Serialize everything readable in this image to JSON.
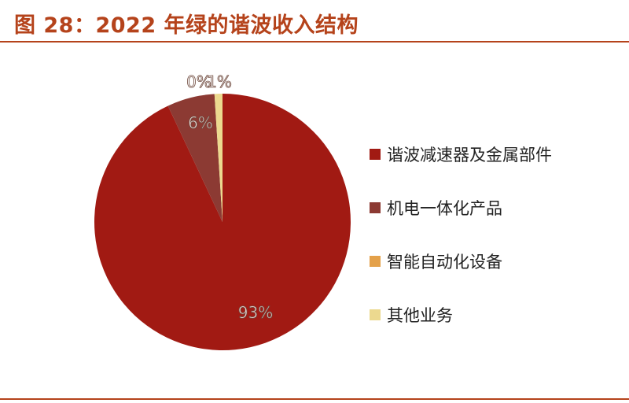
{
  "header": {
    "title": "图 28：2022 年绿的谐波收入结构"
  },
  "colors": {
    "accent": "#b5431b"
  },
  "chart_data": {
    "type": "pie",
    "categories": [
      "谐波减速器及金属部件",
      "机电一体化产品",
      "智能自动化设备",
      "其他业务"
    ],
    "values": [
      93,
      6,
      0,
      1
    ],
    "data_labels": [
      "93%",
      "6%",
      "0%",
      "1%"
    ],
    "unit": "%",
    "colors": [
      "#a11a13",
      "#8c3a33",
      "#e4a14a",
      "#ecd98f"
    ],
    "legend_position": "right"
  }
}
